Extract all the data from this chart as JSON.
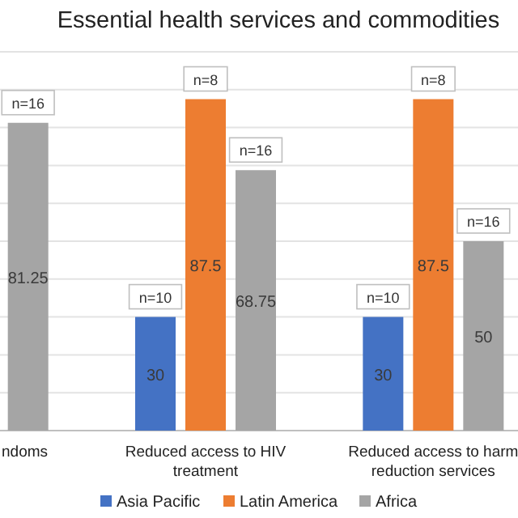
{
  "chart_data": {
    "type": "bar",
    "title": "Essential health services and commodities",
    "categories": [
      "ndoms",
      "Reduced access to HIV treatment",
      "Reduced access to harm reduction services"
    ],
    "series": [
      {
        "name": "Asia Pacific",
        "color": "#4472c4",
        "values": [
          null,
          30,
          30
        ]
      },
      {
        "name": "Latin America",
        "color": "#ed7d31",
        "values": [
          null,
          87.5,
          87.5
        ]
      },
      {
        "name": "Africa",
        "color": "#a5a5a5",
        "values": [
          81.25,
          68.75,
          50
        ]
      }
    ],
    "ylim": [
      0,
      100
    ],
    "yticks": [
      {
        "value": 0,
        "label": null
      },
      {
        "value": 10,
        "label": null
      },
      {
        "value": 20,
        "label": null
      },
      {
        "value": 30,
        "label": null
      },
      {
        "value": 40,
        "label": null
      },
      {
        "value": 50,
        "label": null
      },
      {
        "value": 60,
        "label": null
      },
      {
        "value": 70,
        "label": null
      },
      {
        "value": 80,
        "label": null
      },
      {
        "value": 90,
        "label": null
      },
      {
        "value": 100,
        "label": null
      }
    ],
    "tick_labels": "x",
    "grid": "y",
    "data_labels": true,
    "legend": "bottom",
    "annotations": [
      "n=16",
      "n=10",
      "n=8",
      "n=16",
      "n=10",
      "n=8",
      "n=16"
    ]
  }
}
